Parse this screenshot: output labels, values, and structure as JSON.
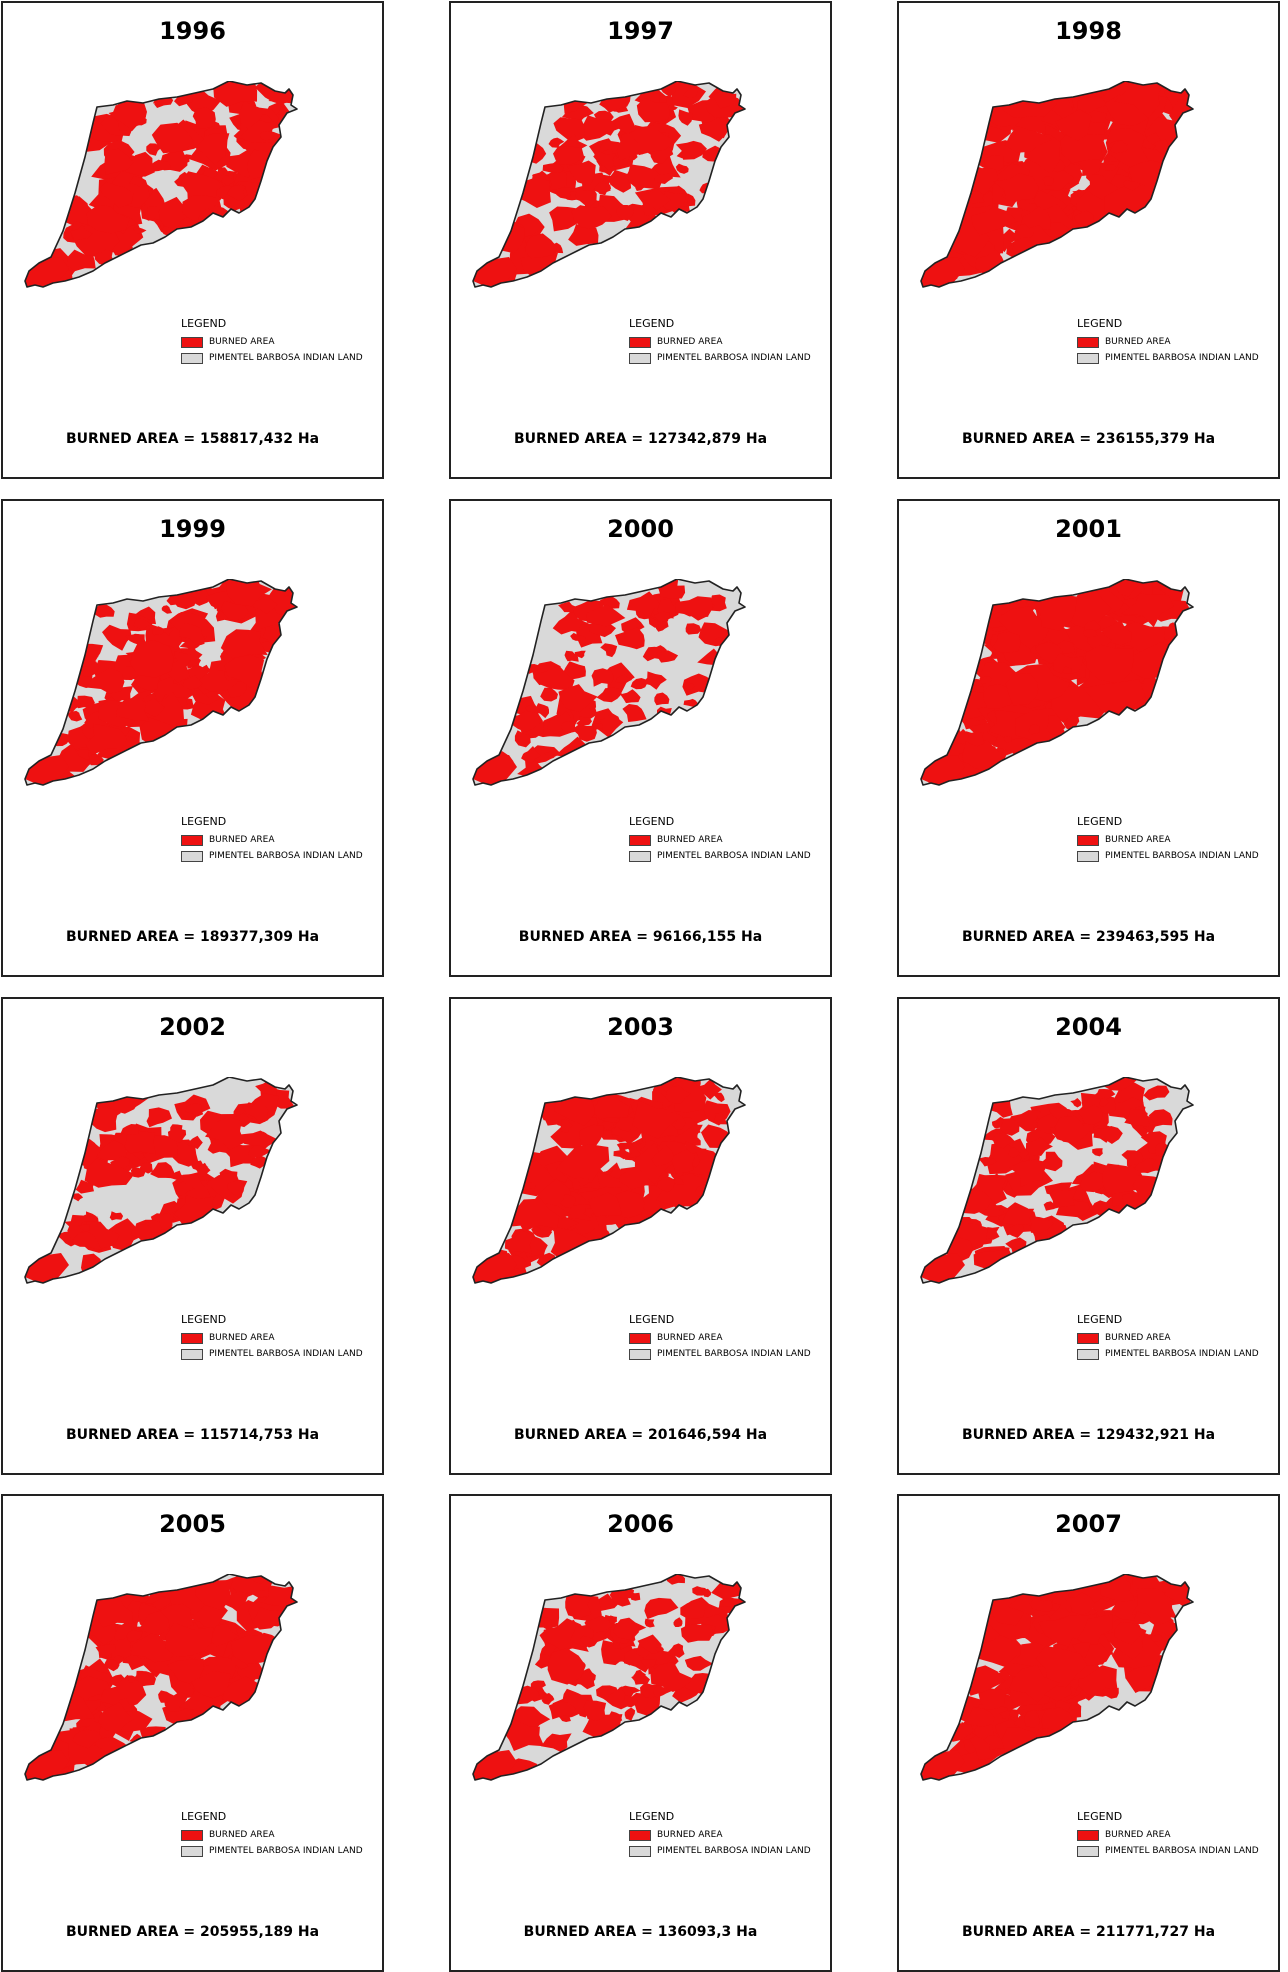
{
  "colors": {
    "burned": "#ee1111",
    "territory": "#d9d9d9",
    "outline": "#222222"
  },
  "legend": {
    "title": "LEGEND",
    "burned_label": "BURNED AREA",
    "territory_label": "PIMENTEL BARBOSA INDIAN LAND"
  },
  "area_label": "BURNED AREA = ",
  "panels": [
    {
      "year": "1996",
      "area": "158817,432 Ha",
      "burned_fraction": 0.56
    },
    {
      "year": "1997",
      "area": "127342,879 Ha",
      "burned_fraction": 0.45
    },
    {
      "year": "1998",
      "area": "236155,379 Ha",
      "burned_fraction": 0.83
    },
    {
      "year": "1999",
      "area": "189377,309 Ha",
      "burned_fraction": 0.67
    },
    {
      "year": "2000",
      "area": "96166,155 Ha",
      "burned_fraction": 0.34
    },
    {
      "year": "2001",
      "area": "239463,595 Ha",
      "burned_fraction": 0.84
    },
    {
      "year": "2002",
      "area": "115714,753 Ha",
      "burned_fraction": 0.41
    },
    {
      "year": "2003",
      "area": "201646,594 Ha",
      "burned_fraction": 0.71
    },
    {
      "year": "2004",
      "area": "129432,921 Ha",
      "burned_fraction": 0.46
    },
    {
      "year": "2005",
      "area": "205955,189 Ha",
      "burned_fraction": 0.72
    },
    {
      "year": "2006",
      "area": "136093,3 Ha",
      "burned_fraction": 0.48
    },
    {
      "year": "2007",
      "area": "211771,727 Ha",
      "burned_fraction": 0.74
    }
  ]
}
